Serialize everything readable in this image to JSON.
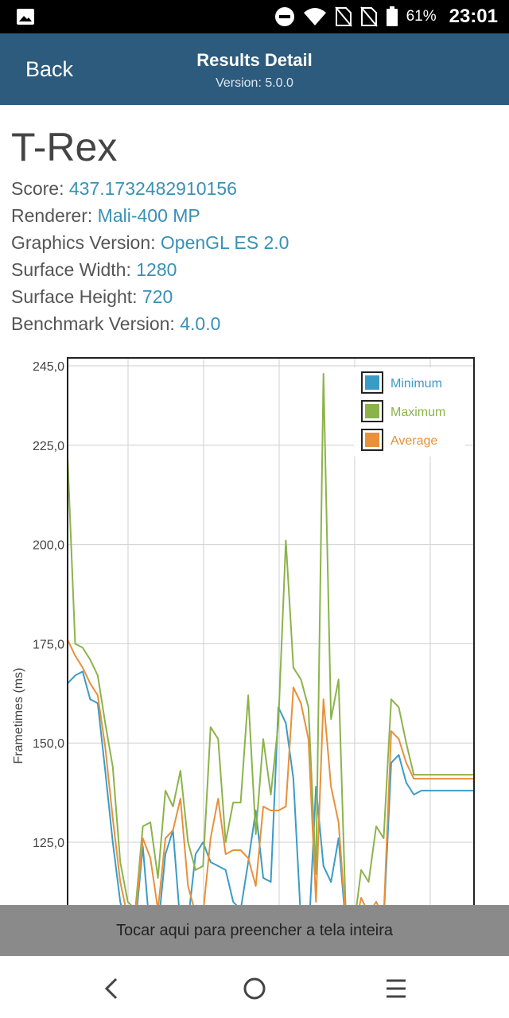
{
  "status_bar": {
    "battery": "61%",
    "time": "23:01"
  },
  "app_bar": {
    "back_label": "Back",
    "title": "Results Detail",
    "subtitle": "Version: 5.0.0"
  },
  "benchmark": {
    "name": "T-Rex",
    "rows": [
      {
        "label": "Score: ",
        "value": "437.1732482910156"
      },
      {
        "label": "Renderer: ",
        "value": "Mali-400 MP"
      },
      {
        "label": "Graphics Version: ",
        "value": "OpenGL ES 2.0"
      },
      {
        "label": "Surface Width: ",
        "value": "1280"
      },
      {
        "label": "Surface Height: ",
        "value": "720"
      },
      {
        "label": "Benchmark Version: ",
        "value": "4.0.0"
      }
    ]
  },
  "snackbar": {
    "text": "Tocar aqui para preencher a tela inteira"
  },
  "chart_data": {
    "type": "line",
    "title": "",
    "xlabel": "",
    "ylabel": "Frametimes (ms)",
    "ylim": [
      100,
      245
    ],
    "yticks": [
      "245,0",
      "225,0",
      "200,0",
      "175,0",
      "150,0",
      "125,0"
    ],
    "ytick_values": [
      245,
      225,
      200,
      175,
      150,
      125
    ],
    "x": [
      0,
      1,
      2,
      3,
      4,
      5,
      6,
      7,
      8,
      9,
      10,
      11,
      12,
      13,
      14,
      15,
      16,
      17,
      18,
      19,
      20,
      21,
      22,
      23,
      24,
      25,
      26,
      27,
      28,
      29,
      30,
      31,
      32,
      33,
      34,
      35,
      36,
      37,
      38,
      39,
      40,
      41,
      42,
      43,
      44,
      45,
      46,
      47,
      48,
      49,
      50,
      51,
      52,
      53,
      54
    ],
    "grid": true,
    "legend_position": "top-right",
    "series": [
      {
        "name": "Minimum",
        "color": "#3a9cc6",
        "values": [
          165,
          167,
          168,
          161,
          160,
          143,
          125,
          110,
          102,
          104,
          124,
          101,
          103,
          122,
          128,
          104,
          105,
          122,
          125,
          120,
          119,
          118,
          110,
          108,
          120,
          133,
          116,
          115,
          159,
          155,
          141,
          105,
          100,
          139,
          119,
          115,
          126,
          103,
          101,
          100,
          101,
          104,
          105,
          145,
          147,
          140,
          137,
          138,
          138,
          138,
          138,
          138,
          138,
          138,
          138
        ]
      },
      {
        "name": "Maximum",
        "color": "#8cb34a",
        "values": [
          222,
          175,
          174,
          171,
          167,
          155,
          144,
          120,
          110,
          108,
          129,
          130,
          116,
          138,
          134,
          143,
          125,
          118,
          119,
          154,
          151,
          125,
          135,
          135,
          162,
          127,
          151,
          137,
          155,
          201,
          169,
          166,
          159,
          117,
          243,
          156,
          166,
          105,
          103,
          118,
          115,
          129,
          126,
          161,
          159,
          150,
          142,
          142,
          142,
          142,
          142,
          142,
          142,
          142,
          142
        ]
      },
      {
        "name": "Average",
        "color": "#e8903a",
        "values": [
          176,
          172,
          169,
          165,
          162,
          149,
          131,
          115,
          106,
          106,
          126,
          121,
          108,
          126,
          128,
          136,
          114,
          107,
          107,
          126,
          136,
          122,
          123,
          123,
          121,
          114,
          134,
          133,
          133,
          134,
          164,
          160,
          151,
          110,
          161,
          139,
          130,
          104,
          102,
          111,
          107,
          110,
          106,
          153,
          151,
          145,
          141,
          141,
          141,
          141,
          141,
          141,
          141,
          141,
          141
        ]
      }
    ]
  }
}
